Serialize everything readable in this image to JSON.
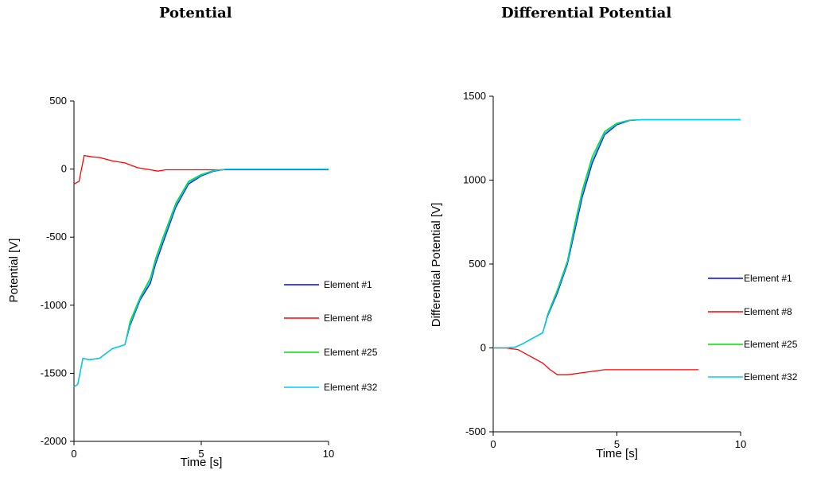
{
  "chart_data": [
    {
      "type": "line",
      "title": "Potential",
      "xlabel": "Time [s]",
      "ylabel": "Potential [V]",
      "xlim": [
        0,
        10
      ],
      "ylim": [
        -2000,
        500
      ],
      "xticks": [
        "0",
        "5",
        "10"
      ],
      "yticks": [
        "500",
        "0",
        "-500",
        "-1000",
        "-1500",
        "-2000"
      ],
      "grid": false,
      "legend_placement": "right",
      "series": [
        {
          "name": "Element #1",
          "color": "#0000ff",
          "x": [
            0,
            0.15,
            0.35,
            0.6,
            1.0,
            1.5,
            2.0,
            2.2,
            2.6,
            3.0,
            3.2,
            3.5,
            4.0,
            4.5,
            5.0,
            5.5,
            6.0,
            7.0,
            8.0,
            10.0
          ],
          "y": [
            -1600,
            -1580,
            -1390,
            -1400,
            -1390,
            -1320,
            -1290,
            -1150,
            -960,
            -840,
            -700,
            -540,
            -280,
            -110,
            -50,
            -15,
            0,
            0,
            0,
            0
          ]
        },
        {
          "name": "Element #8",
          "color": "#ff0000",
          "x": [
            0,
            0.2,
            0.4,
            0.7,
            1.0,
            1.5,
            2.0,
            2.5,
            3.0,
            3.3,
            3.6,
            4.0,
            5.0,
            6.0,
            7.0,
            8.0,
            10.0
          ],
          "y": [
            -110,
            -90,
            100,
            90,
            85,
            60,
            45,
            10,
            -5,
            -15,
            -5,
            -5,
            -5,
            -5,
            -5,
            -5,
            -5
          ]
        },
        {
          "name": "Element #25",
          "color": "#00dd00",
          "x": [
            0,
            0.15,
            0.35,
            0.6,
            1.0,
            1.5,
            2.0,
            2.2,
            2.6,
            3.0,
            3.2,
            3.5,
            4.0,
            4.5,
            5.0,
            5.5,
            6.0,
            7.0,
            8.0,
            10.0
          ],
          "y": [
            -1600,
            -1580,
            -1390,
            -1400,
            -1390,
            -1320,
            -1290,
            -1120,
            -940,
            -800,
            -660,
            -500,
            -250,
            -90,
            -40,
            -10,
            0,
            0,
            0,
            0
          ]
        },
        {
          "name": "Element #32",
          "color": "#00ccff",
          "x": [
            0,
            0.15,
            0.35,
            0.6,
            1.0,
            1.5,
            2.0,
            2.2,
            2.6,
            3.0,
            3.2,
            3.5,
            4.0,
            4.5,
            5.0,
            5.5,
            6.0,
            7.0,
            8.0,
            10.0
          ],
          "y": [
            -1600,
            -1580,
            -1390,
            -1400,
            -1390,
            -1320,
            -1290,
            -1140,
            -950,
            -820,
            -680,
            -520,
            -265,
            -100,
            -45,
            -12,
            0,
            0,
            0,
            0
          ]
        }
      ]
    },
    {
      "type": "line",
      "title": "Differential Potential",
      "xlabel": "Time [s]",
      "ylabel": "Differential Potential [V]",
      "xlim": [
        0,
        10
      ],
      "ylim": [
        -500,
        1500
      ],
      "xticks": [
        "0",
        "5",
        "10"
      ],
      "yticks": [
        "1500",
        "1000",
        "500",
        "0",
        "-500"
      ],
      "grid": false,
      "legend_placement": "right",
      "series": [
        {
          "name": "Element #1",
          "color": "#0000ff",
          "x": [
            0,
            0.5,
            0.9,
            1.2,
            1.5,
            2.0,
            2.2,
            2.6,
            3.0,
            3.3,
            3.6,
            4.0,
            4.5,
            5.0,
            5.5,
            6.0,
            7.0,
            8.0,
            10.0
          ],
          "y": [
            0,
            0,
            5,
            25,
            50,
            90,
            190,
            330,
            500,
            700,
            900,
            1100,
            1270,
            1330,
            1355,
            1360,
            1360,
            1360,
            1360
          ]
        },
        {
          "name": "Element #8",
          "color": "#ff0000",
          "x": [
            0,
            0.5,
            1.0,
            1.5,
            2.0,
            2.3,
            2.6,
            3.0,
            3.5,
            4.0,
            4.5,
            5.0,
            6.0,
            7.0,
            8.3
          ],
          "y": [
            0,
            0,
            -10,
            -50,
            -90,
            -130,
            -160,
            -160,
            -150,
            -140,
            -130,
            -130,
            -130,
            -130,
            -130
          ]
        },
        {
          "name": "Element #25",
          "color": "#00dd00",
          "x": [
            0,
            0.5,
            0.9,
            1.2,
            1.5,
            2.0,
            2.2,
            2.6,
            3.0,
            3.3,
            3.6,
            4.0,
            4.5,
            5.0,
            5.5,
            6.0,
            7.0,
            8.0,
            10.0
          ],
          "y": [
            0,
            0,
            5,
            25,
            50,
            90,
            200,
            350,
            520,
            740,
            940,
            1140,
            1290,
            1340,
            1358,
            1360,
            1360,
            1360,
            1360
          ]
        },
        {
          "name": "Element #32",
          "color": "#00ccff",
          "x": [
            0,
            0.5,
            0.9,
            1.2,
            1.5,
            2.0,
            2.2,
            2.6,
            3.0,
            3.3,
            3.6,
            4.0,
            4.5,
            5.0,
            5.5,
            6.0,
            7.0,
            8.0,
            10.0
          ],
          "y": [
            0,
            0,
            5,
            25,
            50,
            90,
            195,
            340,
            510,
            720,
            920,
            1120,
            1280,
            1335,
            1356,
            1360,
            1360,
            1360,
            1360
          ]
        }
      ]
    }
  ]
}
